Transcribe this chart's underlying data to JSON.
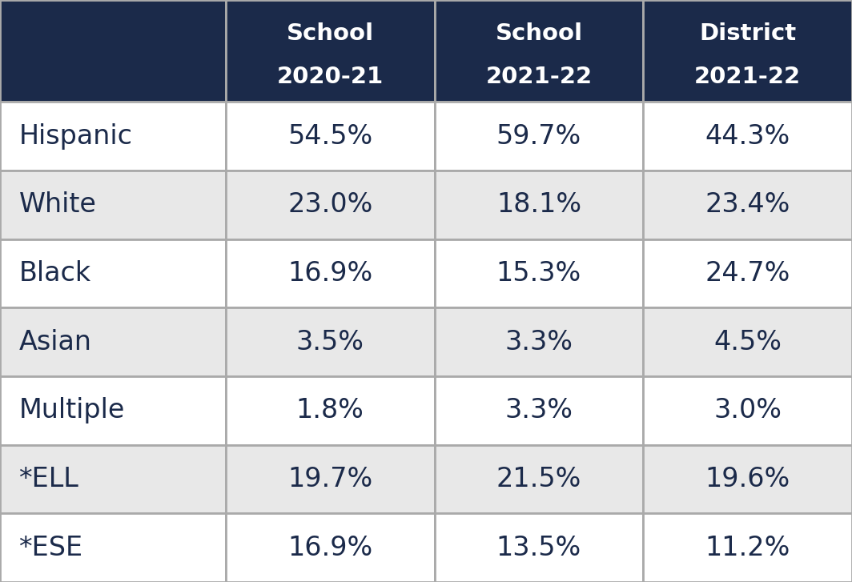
{
  "col_headers": [
    [
      "School",
      "2020-21"
    ],
    [
      "School",
      "2021-22"
    ],
    [
      "District",
      "2021-22"
    ]
  ],
  "rows": [
    {
      "label": "Hispanic",
      "values": [
        "54.5%",
        "59.7%",
        "44.3%"
      ]
    },
    {
      "label": "White",
      "values": [
        "23.0%",
        "18.1%",
        "23.4%"
      ]
    },
    {
      "label": "Black",
      "values": [
        "16.9%",
        "15.3%",
        "24.7%"
      ]
    },
    {
      "label": "Asian",
      "values": [
        "3.5%",
        "3.3%",
        "4.5%"
      ]
    },
    {
      "label": "Multiple",
      "values": [
        "1.8%",
        "3.3%",
        "3.0%"
      ]
    },
    {
      "label": "*ELL",
      "values": [
        "19.7%",
        "21.5%",
        "19.6%"
      ]
    },
    {
      "label": "*ESE",
      "values": [
        "16.9%",
        "13.5%",
        "11.2%"
      ]
    }
  ],
  "header_bg": "#1b2a4a",
  "header_text_color": "#ffffff",
  "row_bg_odd": "#ffffff",
  "row_bg_even": "#e8e8e8",
  "cell_text_color": "#1b2a4a",
  "label_text_color": "#1b2a4a",
  "border_color": "#aaaaaa",
  "header_fontsize": 21,
  "cell_fontsize": 24,
  "label_fontsize": 24,
  "figsize": [
    10.64,
    7.27
  ],
  "dpi": 100
}
